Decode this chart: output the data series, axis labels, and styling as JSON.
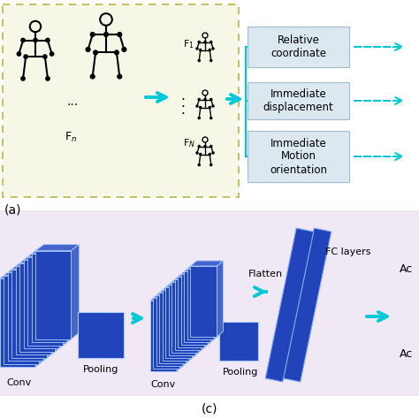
{
  "bg_color": "#ffffff",
  "top_panel_bg": "#f7f7e8",
  "top_panel_border": "#b8b840",
  "bottom_panel_bg": "#f0e8f4",
  "cyan": "#00c8d8",
  "box_color": "#dce8f0",
  "box_border": "#a0bcd0",
  "blue_dark": "#2244bb",
  "blue_mid": "#4466cc",
  "blue_light": "#88aaee",
  "blue_pale": "#aaccff",
  "label_a": "(a)",
  "label_c": "(c)",
  "box1_text": "Relative\ncoordinate",
  "box2_text": "Immediate\ndisplacement",
  "box3_text": "Immediate\nMotion\norientation",
  "pooling1_label": "Pooling",
  "conv1_label": "Conv",
  "flatten_label": "Flatten",
  "pooling2_label": "Pooling",
  "conv2_label": "Conv",
  "fc_label": "FC layers",
  "ac1_label": "Ac",
  "ac2_label": "Ac"
}
